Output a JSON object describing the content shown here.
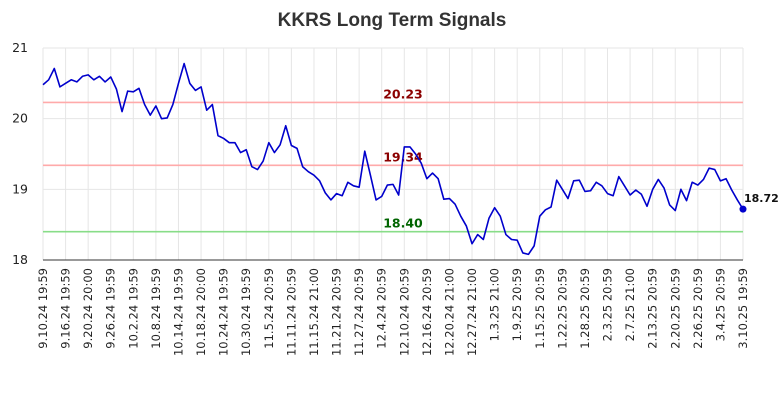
{
  "chart_data": {
    "type": "line",
    "title": "KKRS Long Term Signals",
    "xlabel": "",
    "ylabel": "",
    "ylim": [
      18,
      21
    ],
    "yticks": [
      18,
      19,
      20,
      21
    ],
    "grid": true,
    "colors": {
      "line": "#0000cc",
      "upper": "#ffaaaa",
      "middle": "#ffaaaa",
      "lower": "#88dd88",
      "upper_text": "#8b0000",
      "middle_text": "#8b0000",
      "lower_text": "#006400",
      "grid": "#e6e6e6"
    },
    "x_labels": [
      "9.10.24 19:59",
      "9.16.24 19:59",
      "9.20.24 20:00",
      "9.26.24 19:59",
      "10.2.24 19:59",
      "10.8.24 19:59",
      "10.14.24 19:59",
      "10.18.24 20:00",
      "10.24.24 19:59",
      "10.30.24 19:59",
      "11.5.24 20:59",
      "11.11.24 20:59",
      "11.15.24 21:00",
      "11.21.24 20:59",
      "11.27.24 20:59",
      "12.4.24 20:59",
      "12.10.24 20:59",
      "12.16.24 20:59",
      "12.20.24 21:00",
      "12.27.24 21:00",
      "1.3.25 21:00",
      "1.9.25 20:59",
      "1.15.25 20:59",
      "1.22.25 20:59",
      "1.28.25 20:59",
      "2.3.25 20:59",
      "2.7.25 21:00",
      "2.13.25 20:59",
      "2.20.25 20:59",
      "2.26.25 20:59",
      "3.4.25 20:59",
      "3.10.25 19:59"
    ],
    "series": [
      {
        "values": [
          20.48,
          20.55,
          20.71,
          20.45,
          20.5,
          20.55,
          20.52,
          20.6,
          20.62,
          20.55,
          20.6,
          20.52,
          20.59,
          20.42,
          20.1,
          20.39,
          20.38,
          20.43,
          20.2,
          20.05,
          20.18,
          20.0,
          20.01,
          20.2,
          20.5,
          20.78,
          20.5,
          20.4,
          20.45,
          20.12,
          20.2,
          19.76,
          19.72,
          19.66,
          19.66,
          19.52,
          19.56,
          19.32,
          19.28,
          19.4,
          19.66,
          19.52,
          19.63,
          19.9,
          19.62,
          19.58,
          19.32,
          19.25,
          19.2,
          19.12,
          18.95,
          18.85,
          18.94,
          18.91,
          19.1,
          19.05,
          19.03,
          19.54,
          19.2,
          18.85,
          18.9,
          19.06,
          19.07,
          18.92,
          19.6,
          19.6,
          19.5,
          19.37,
          19.15,
          19.23,
          19.15,
          18.86,
          18.87,
          18.79,
          18.62,
          18.48,
          18.23,
          18.36,
          18.29,
          18.59,
          18.74,
          18.62,
          18.36,
          18.29,
          18.28,
          18.1,
          18.08,
          18.2,
          18.62,
          18.71,
          18.75,
          19.13,
          19.0,
          18.87,
          19.12,
          19.13,
          18.97,
          18.98,
          19.1,
          19.05,
          18.94,
          18.91,
          19.18,
          19.05,
          18.92,
          18.99,
          18.93,
          18.76,
          19.0,
          19.14,
          19.02,
          18.78,
          18.7,
          19.0,
          18.84,
          19.1,
          19.06,
          19.14,
          19.3,
          19.28,
          19.12,
          19.15,
          18.99,
          18.85,
          18.72
        ]
      }
    ],
    "hlines": [
      {
        "value": 20.23,
        "label": "20.23",
        "role": "upper"
      },
      {
        "value": 19.34,
        "label": "19.34",
        "role": "middle"
      },
      {
        "value": 18.4,
        "label": "18.40",
        "role": "lower"
      }
    ],
    "last_value_label": "18.72"
  }
}
